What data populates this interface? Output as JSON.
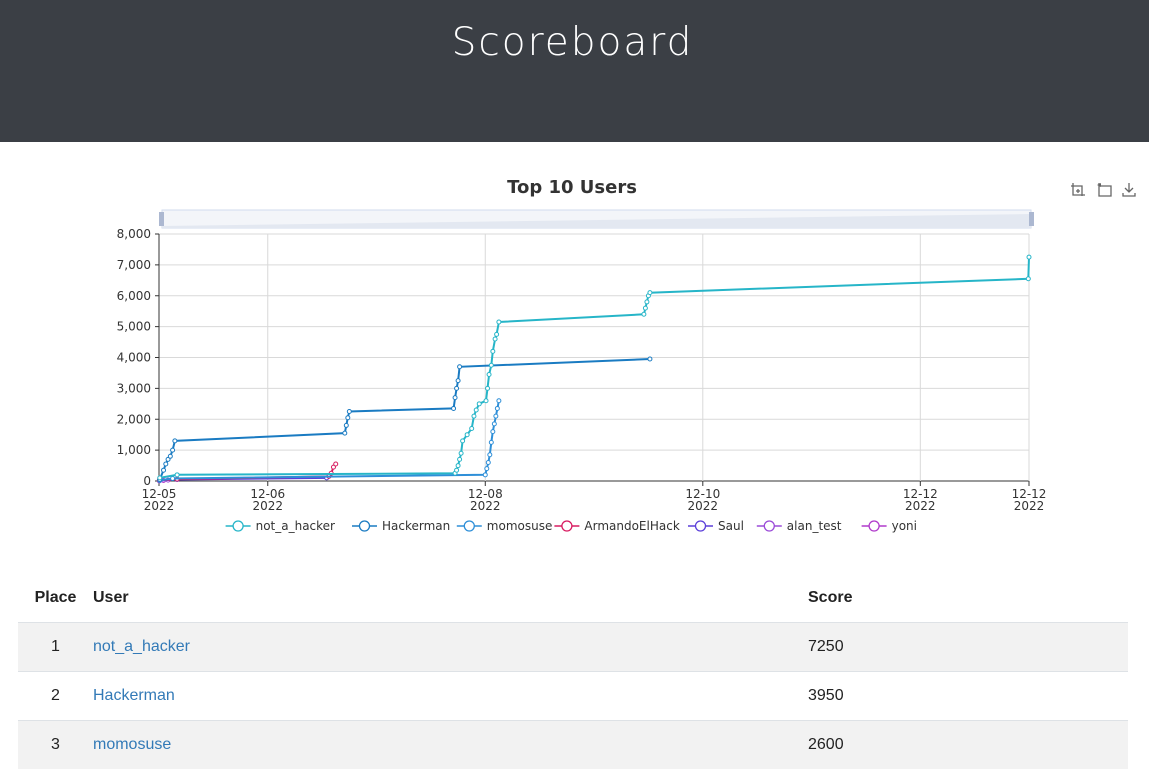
{
  "header": {
    "title": "Scoreboard"
  },
  "toolbox": {
    "icons": [
      "zoom-icon",
      "zoom-reset-icon",
      "download-icon"
    ]
  },
  "chart_data": {
    "type": "line",
    "title": "Top 10 Users",
    "ylim": [
      0,
      8000
    ],
    "yticks": [
      0,
      1000,
      2000,
      3000,
      4000,
      5000,
      6000,
      7000,
      8000
    ],
    "ytick_labels": [
      "0",
      "1,000",
      "2,000",
      "3,000",
      "4,000",
      "5,000",
      "6,000",
      "7,000",
      "8,000"
    ],
    "xlim": [
      "2022-12-05T00:00",
      "2022-12-12T23:59"
    ],
    "xticks": [
      {
        "t": "2022-12-05T00:00",
        "day": "12-05",
        "year": "2022"
      },
      {
        "t": "2022-12-06T00:00",
        "day": "12-06",
        "year": "2022"
      },
      {
        "t": "2022-12-08T00:00",
        "day": "12-08",
        "year": "2022"
      },
      {
        "t": "2022-12-10T00:00",
        "day": "12-10",
        "year": "2022"
      },
      {
        "t": "2022-12-12T00:00",
        "day": "12-12",
        "year": "2022"
      },
      {
        "t": "2022-12-12T23:59",
        "day": "12-12",
        "year": "2022"
      }
    ],
    "grid": true,
    "legend_position": "bottom",
    "series": [
      {
        "name": "not_a_hacker",
        "color": "#26b5c8",
        "points": [
          [
            "2022-12-05T00:10",
            100
          ],
          [
            "2022-12-05T04:00",
            200
          ],
          [
            "2022-12-07T17:20",
            250
          ],
          [
            "2022-12-07T17:40",
            350
          ],
          [
            "2022-12-07T18:00",
            500
          ],
          [
            "2022-12-07T18:20",
            700
          ],
          [
            "2022-12-07T18:40",
            900
          ],
          [
            "2022-12-07T19:00",
            1300
          ],
          [
            "2022-12-07T20:00",
            1500
          ],
          [
            "2022-12-07T21:00",
            1700
          ],
          [
            "2022-12-07T21:30",
            2100
          ],
          [
            "2022-12-07T22:00",
            2300
          ],
          [
            "2022-12-07T22:40",
            2500
          ],
          [
            "2022-12-08T00:10",
            2600
          ],
          [
            "2022-12-08T00:30",
            3000
          ],
          [
            "2022-12-08T00:50",
            3450
          ],
          [
            "2022-12-08T01:20",
            3750
          ],
          [
            "2022-12-08T01:40",
            4200
          ],
          [
            "2022-12-08T02:10",
            4600
          ],
          [
            "2022-12-08T02:30",
            4750
          ],
          [
            "2022-12-08T03:00",
            5150
          ],
          [
            "2022-12-09T11:00",
            5400
          ],
          [
            "2022-12-09T11:20",
            5600
          ],
          [
            "2022-12-09T11:40",
            5800
          ],
          [
            "2022-12-09T12:00",
            6000
          ],
          [
            "2022-12-09T12:20",
            6100
          ],
          [
            "2022-12-12T23:50",
            6550
          ],
          [
            "2022-12-12T23:59",
            7250
          ]
        ]
      },
      {
        "name": "Hackerman",
        "color": "#1a7bc2",
        "points": [
          [
            "2022-12-05T00:10",
            50
          ],
          [
            "2022-12-05T01:00",
            350
          ],
          [
            "2022-12-05T01:30",
            550
          ],
          [
            "2022-12-05T02:00",
            700
          ],
          [
            "2022-12-05T02:30",
            800
          ],
          [
            "2022-12-05T03:00",
            1000
          ],
          [
            "2022-12-05T03:30",
            1300
          ],
          [
            "2022-12-06T17:00",
            1550
          ],
          [
            "2022-12-06T17:20",
            1800
          ],
          [
            "2022-12-06T17:40",
            2050
          ],
          [
            "2022-12-06T18:00",
            2250
          ],
          [
            "2022-12-07T17:00",
            2350
          ],
          [
            "2022-12-07T17:20",
            2700
          ],
          [
            "2022-12-07T17:40",
            3000
          ],
          [
            "2022-12-07T18:00",
            3250
          ],
          [
            "2022-12-07T18:20",
            3700
          ],
          [
            "2022-12-09T12:20",
            3950
          ]
        ]
      },
      {
        "name": "momosuse",
        "color": "#2e8fd8",
        "points": [
          [
            "2022-12-05T00:10",
            20
          ],
          [
            "2022-12-05T03:00",
            80
          ],
          [
            "2022-12-08T00:00",
            200
          ],
          [
            "2022-12-08T00:20",
            400
          ],
          [
            "2022-12-08T00:40",
            600
          ],
          [
            "2022-12-08T01:00",
            850
          ],
          [
            "2022-12-08T01:20",
            1250
          ],
          [
            "2022-12-08T01:40",
            1600
          ],
          [
            "2022-12-08T02:00",
            1850
          ],
          [
            "2022-12-08T02:20",
            2100
          ],
          [
            "2022-12-08T02:40",
            2350
          ],
          [
            "2022-12-08T03:00",
            2600
          ]
        ]
      },
      {
        "name": "ArmandoElHack",
        "color": "#d81b60",
        "points": [
          [
            "2022-12-05T00:05",
            30
          ],
          [
            "2022-12-05T04:00",
            60
          ],
          [
            "2022-12-06T13:30",
            150
          ],
          [
            "2022-12-06T14:00",
            250
          ],
          [
            "2022-12-06T14:30",
            450
          ],
          [
            "2022-12-06T15:00",
            550
          ]
        ]
      },
      {
        "name": "Saul",
        "color": "#5b3fd9",
        "points": [
          [
            "2022-12-05T00:05",
            20
          ],
          [
            "2022-12-05T04:00",
            50
          ],
          [
            "2022-12-06T13:00",
            100
          ]
        ]
      },
      {
        "name": "alan_test",
        "color": "#9b4bd8",
        "points": [
          [
            "2022-12-05T00:05",
            10
          ],
          [
            "2022-12-05T02:00",
            30
          ]
        ]
      },
      {
        "name": "yoni",
        "color": "#b03acb",
        "points": [
          [
            "2022-12-05T00:05",
            5
          ],
          [
            "2022-12-05T01:00",
            15
          ]
        ]
      }
    ]
  },
  "table": {
    "headers": [
      "Place",
      "User",
      "Score"
    ],
    "rows": [
      {
        "place": "1",
        "user": "not_a_hacker",
        "score": "7250"
      },
      {
        "place": "2",
        "user": "Hackerman",
        "score": "3950"
      },
      {
        "place": "3",
        "user": "momosuse",
        "score": "2600"
      }
    ]
  }
}
